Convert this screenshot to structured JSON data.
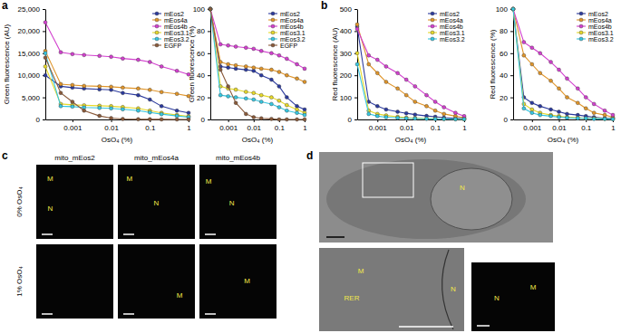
{
  "chart_data": [
    {
      "type": "line",
      "x_label": "OsO₄ (%)",
      "y_label": "Green fluorescence (AU)",
      "log": "x",
      "legend": "upper right",
      "marker": "circle",
      "x": [
        0.0002,
        0.0005,
        0.001,
        0.002,
        0.005,
        0.01,
        0.02,
        0.05,
        0.1,
        0.2,
        0.5,
        1
      ],
      "xlim": [
        0.0002,
        1
      ],
      "xticks": [
        0.001,
        0.01,
        0.1,
        1
      ],
      "ylim": [
        0,
        25000
      ],
      "yticks": [
        0,
        {
          "value": 5000,
          "label": "5,000"
        },
        {
          "value": 10000,
          "label": "10,000"
        },
        {
          "value": 15000,
          "label": "15,000"
        },
        {
          "value": 20000,
          "label": "20,000"
        },
        {
          "value": 25000,
          "label": "25,000"
        }
      ],
      "series": [
        {
          "name": "mEos2",
          "color": "#2b3a9e",
          "values": [
            10000,
            7500,
            7200,
            7000,
            6800,
            6700,
            6000,
            5500,
            4500,
            3000,
            2000,
            1500
          ]
        },
        {
          "name": "mEos4a",
          "color": "#e0952a",
          "values": [
            15500,
            8000,
            7800,
            7600,
            7500,
            7400,
            7200,
            7000,
            6700,
            6200,
            5800,
            5300
          ]
        },
        {
          "name": "mEos4b",
          "color": "#d23fce",
          "values": [
            22000,
            15200,
            14800,
            14600,
            14400,
            14200,
            13800,
            13500,
            13000,
            12000,
            11000,
            10200
          ]
        },
        {
          "name": "mEos3.1",
          "color": "#e6d92a",
          "values": [
            12000,
            3500,
            3300,
            3200,
            3100,
            3000,
            2800,
            2500,
            2000,
            1500,
            1000,
            700
          ]
        },
        {
          "name": "mEos3.2",
          "color": "#36c6e0",
          "values": [
            15000,
            3000,
            2900,
            2700,
            2600,
            2500,
            2300,
            2000,
            1600,
            1200,
            800,
            500
          ]
        },
        {
          "name": "EGFP",
          "color": "#8a5a3a",
          "values": [
            14000,
            6000,
            4000,
            2000,
            800,
            300,
            100,
            50,
            30,
            20,
            10,
            10
          ]
        }
      ]
    },
    {
      "type": "line",
      "x_label": "OsO₄ (%)",
      "y_label": "Green fluorescence (%)",
      "log": "x",
      "legend": "upper right",
      "marker": "circle",
      "x": [
        0.0002,
        0.0005,
        0.001,
        0.002,
        0.005,
        0.01,
        0.02,
        0.05,
        0.1,
        0.2,
        0.5,
        1
      ],
      "xlim": [
        0.0002,
        1
      ],
      "xticks": [
        0.001,
        0.01,
        0.1,
        1
      ],
      "ylim": [
        0,
        100
      ],
      "yticks": [
        0,
        20,
        40,
        60,
        80,
        100
      ],
      "series": [
        {
          "name": "mEos2",
          "color": "#2b3a9e",
          "values": [
            100,
            48,
            47,
            46,
            45,
            44,
            40,
            36,
            30,
            20,
            12,
            9
          ]
        },
        {
          "name": "mEos4a",
          "color": "#e0952a",
          "values": [
            100,
            52,
            50,
            49,
            48,
            47,
            46,
            45,
            43,
            40,
            37,
            34
          ]
        },
        {
          "name": "mEos4b",
          "color": "#d23fce",
          "values": [
            100,
            68,
            67,
            66,
            65,
            64,
            62,
            60,
            58,
            55,
            50,
            46
          ]
        },
        {
          "name": "mEos3.1",
          "color": "#e6d92a",
          "values": [
            100,
            30,
            28,
            27,
            25,
            24,
            22,
            20,
            17,
            13,
            9,
            6
          ]
        },
        {
          "name": "mEos3.2",
          "color": "#36c6e0",
          "values": [
            100,
            22,
            21,
            20,
            19,
            18,
            16,
            14,
            11,
            8,
            6,
            4
          ]
        },
        {
          "name": "EGFP",
          "color": "#8a5a3a",
          "values": [
            100,
            45,
            30,
            15,
            5,
            2,
            1,
            0.5,
            0,
            0,
            0,
            0
          ]
        }
      ]
    },
    {
      "type": "line",
      "x_label": "OsO₄ (%)",
      "y_label": "Red fluorescence (AU)",
      "log": "x",
      "legend": "upper right",
      "marker": "circle",
      "x": [
        0.0002,
        0.0005,
        0.001,
        0.002,
        0.005,
        0.01,
        0.02,
        0.05,
        0.1,
        0.2,
        0.5,
        1
      ],
      "xlim": [
        0.0002,
        1
      ],
      "xticks": [
        0.001,
        0.01,
        0.1,
        1
      ],
      "ylim": [
        0,
        500
      ],
      "yticks": [
        0,
        100,
        200,
        300,
        400,
        500
      ],
      "series": [
        {
          "name": "mEos2",
          "color": "#2b3a9e",
          "values": [
            420,
            80,
            60,
            45,
            35,
            28,
            22,
            16,
            12,
            8,
            5,
            3
          ]
        },
        {
          "name": "mEos4a",
          "color": "#e0952a",
          "values": [
            430,
            250,
            210,
            170,
            140,
            110,
            80,
            60,
            40,
            25,
            15,
            8
          ]
        },
        {
          "name": "mEos4b",
          "color": "#d23fce",
          "values": [
            410,
            290,
            270,
            240,
            210,
            180,
            150,
            110,
            80,
            55,
            30,
            15
          ]
        },
        {
          "name": "mEos3.1",
          "color": "#e6d92a",
          "values": [
            300,
            40,
            25,
            18,
            12,
            8,
            6,
            4,
            3,
            2,
            2,
            1
          ]
        },
        {
          "name": "mEos3.2",
          "color": "#36c6e0",
          "values": [
            250,
            25,
            15,
            10,
            7,
            5,
            4,
            3,
            2,
            2,
            1,
            1
          ]
        }
      ]
    },
    {
      "type": "line",
      "x_label": "OsO₄ (%)",
      "y_label": "Red fluorescence (%)",
      "log": "x",
      "legend": "upper right",
      "marker": "circle",
      "x": [
        0.0002,
        0.0005,
        0.001,
        0.002,
        0.005,
        0.01,
        0.02,
        0.05,
        0.1,
        0.2,
        0.5,
        1
      ],
      "xlim": [
        0.0002,
        1
      ],
      "xticks": [
        0.001,
        0.01,
        0.1,
        1
      ],
      "ylim": [
        0,
        100
      ],
      "yticks": [
        0,
        20,
        40,
        60,
        80,
        100
      ],
      "series": [
        {
          "name": "mEos2",
          "color": "#2b3a9e",
          "values": [
            100,
            20,
            15,
            12,
            9,
            7,
            5,
            4,
            3,
            2,
            1,
            1
          ]
        },
        {
          "name": "mEos4a",
          "color": "#e0952a",
          "values": [
            100,
            58,
            50,
            42,
            35,
            28,
            20,
            15,
            10,
            6,
            4,
            2
          ]
        },
        {
          "name": "mEos4b",
          "color": "#d23fce",
          "values": [
            100,
            70,
            65,
            60,
            52,
            45,
            37,
            28,
            20,
            14,
            8,
            4
          ]
        },
        {
          "name": "mEos3.1",
          "color": "#e6d92a",
          "values": [
            100,
            14,
            9,
            6,
            4,
            3,
            2,
            1.5,
            1,
            1,
            0.5,
            0.5
          ]
        },
        {
          "name": "mEos3.2",
          "color": "#36c6e0",
          "values": [
            100,
            10,
            6,
            4,
            3,
            2,
            1.5,
            1,
            1,
            0.5,
            0.5,
            0.3
          ]
        }
      ]
    }
  ],
  "panel_labels": [
    "a",
    "b",
    "c",
    "d"
  ],
  "images": {
    "c": {
      "columns": [
        "mito_mEos2",
        "mito_mEos4a",
        "mito_mEos4b"
      ],
      "rows": [
        "0% OsO₄",
        "1% OsO₄"
      ],
      "cells": [
        [
          "M",
          "N"
        ],
        [
          "M",
          "N"
        ],
        [
          "M",
          "N"
        ],
        [],
        [
          "M"
        ],
        [
          "M"
        ]
      ]
    },
    "d": {
      "em": [
        "N"
      ],
      "inset": [
        "M",
        "RER",
        "N"
      ],
      "fluorescence": [
        "N",
        "M"
      ]
    }
  }
}
